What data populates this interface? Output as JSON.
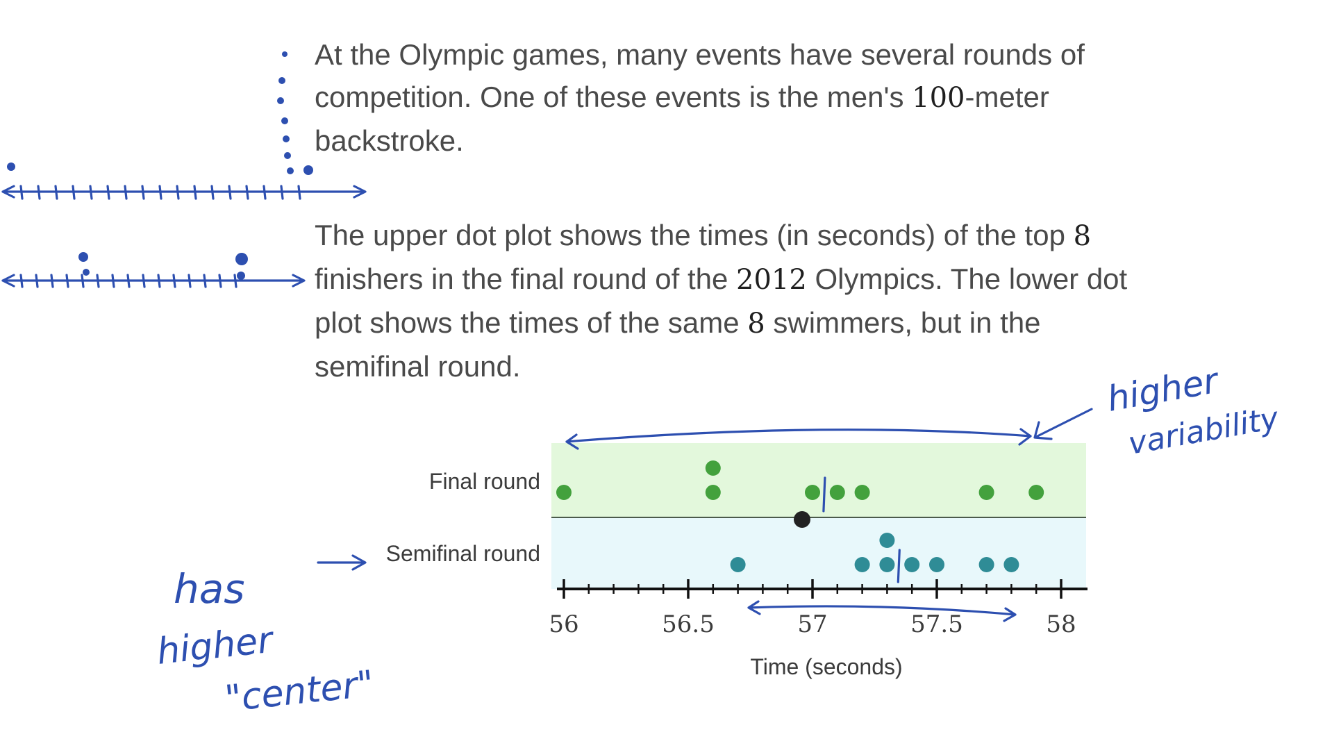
{
  "paragraph1": {
    "part1": "At the Olympic games, many events have several rounds of competition. One of these events is the men's ",
    "num1": "100",
    "part2": "-meter backstroke."
  },
  "paragraph2": {
    "part1": "The upper dot plot shows the times (in seconds) of the top ",
    "num1": "8",
    "part2": " finishers in the final round of the ",
    "num2": "2012",
    "part3": " Olympics. The lower dot plot shows the times of the same ",
    "num3": "8",
    "part4": " swimmers, but in the semifinal round."
  },
  "annotations": {
    "right_line1": "higher",
    "right_line2": "variability",
    "left_line1": "has",
    "left_line2": "higher",
    "left_line3": "\"center\""
  },
  "colors": {
    "final_band": "#e3f8dc",
    "semifinal_band": "#e8f8fb",
    "final_dot": "#43a13d",
    "semifinal_dot": "#2f8c96",
    "ink": "#2d4fb0"
  },
  "chart_data": {
    "type": "scatter",
    "xlabel": "Time (seconds)",
    "xlim": [
      56,
      58
    ],
    "tick_step": 0.1,
    "tick_labels": [
      "56",
      "56.5",
      "57",
      "57.5",
      "58"
    ],
    "series": [
      {
        "name": "Final round",
        "values": [
          56.0,
          56.6,
          56.6,
          57.0,
          57.1,
          57.2,
          57.7,
          57.9
        ],
        "mean_marker": 57.05
      },
      {
        "name": "Semifinal round",
        "values": [
          56.7,
          57.2,
          57.3,
          57.3,
          57.4,
          57.5,
          57.7,
          57.8
        ],
        "mean_marker": 57.35
      }
    ]
  }
}
